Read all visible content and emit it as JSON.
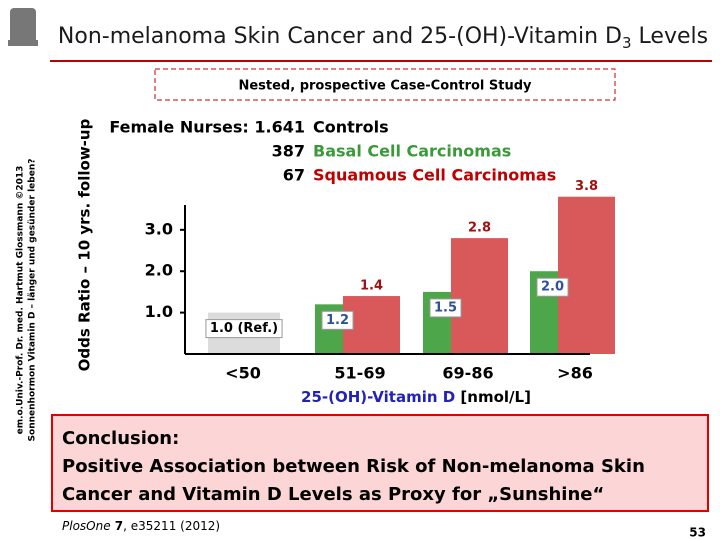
{
  "header": {
    "title": [
      "Non-melanoma Skin Cancer and 25-(OH)-Vitamin D",
      "3",
      " Levels"
    ],
    "subtitle": "Nested, prospective Case-Control Study"
  },
  "side_notes": [
    "em.o.Univ.-Prof. Dr. med. Hartmut Glossmann ©2013",
    "Sonnenhormon Vitamin D – länger und gesünder leben?"
  ],
  "chart_data": {
    "type": "bar",
    "y_label": "Odds Ratio – 10 yrs. follow-up",
    "x_label": [
      "25-(OH)-Vitamin D",
      " [nmol/L]"
    ],
    "categories": [
      "<50",
      "51-69",
      "69-86",
      ">86"
    ],
    "series": [
      {
        "name": "Controls",
        "legend_prefix": "Female Nurses: 1.641",
        "color": "#dcdcdc",
        "text_color": "#000000",
        "label_position": "inside",
        "label_color": "#000000",
        "values": [
          1.0,
          null,
          null,
          null
        ],
        "value_labels": [
          "1.0 (Ref.)",
          null,
          null,
          null
        ]
      },
      {
        "name": "Basal Cell Carcinomas",
        "legend_prefix": "387",
        "color": "#4ea64a",
        "text_color": "#3a9a3a",
        "label_position": "inside",
        "label_color": "#2f4f9f",
        "values": [
          null,
          1.2,
          1.5,
          2.0
        ],
        "value_labels": [
          null,
          "1.2",
          "1.5",
          "2.0"
        ]
      },
      {
        "name": "Squamous Cell Carcinomas",
        "legend_prefix": "67",
        "color": "#d9585a",
        "text_color": "#c00000",
        "label_position": "above",
        "label_color": "#a01010",
        "values": [
          null,
          1.4,
          2.8,
          3.8
        ],
        "value_labels": [
          null,
          "1.4",
          "2.8",
          "3.8"
        ]
      }
    ],
    "ylim": [
      0,
      3.6
    ],
    "yticks": [
      {
        "value": 1,
        "label": "1.0"
      },
      {
        "value": 2,
        "label": "2.0"
      },
      {
        "value": 3,
        "label": "3.0"
      }
    ],
    "grid": false
  },
  "conclusion": [
    "Conclusion:",
    "Positive Association between Risk of Non-melanoma Skin",
    "Cancer and Vitamin D Levels as Proxy for „Sunshine“"
  ],
  "citation": [
    "PlosOne",
    " 7",
    ", e35211 (2012)"
  ],
  "page_number": "53"
}
